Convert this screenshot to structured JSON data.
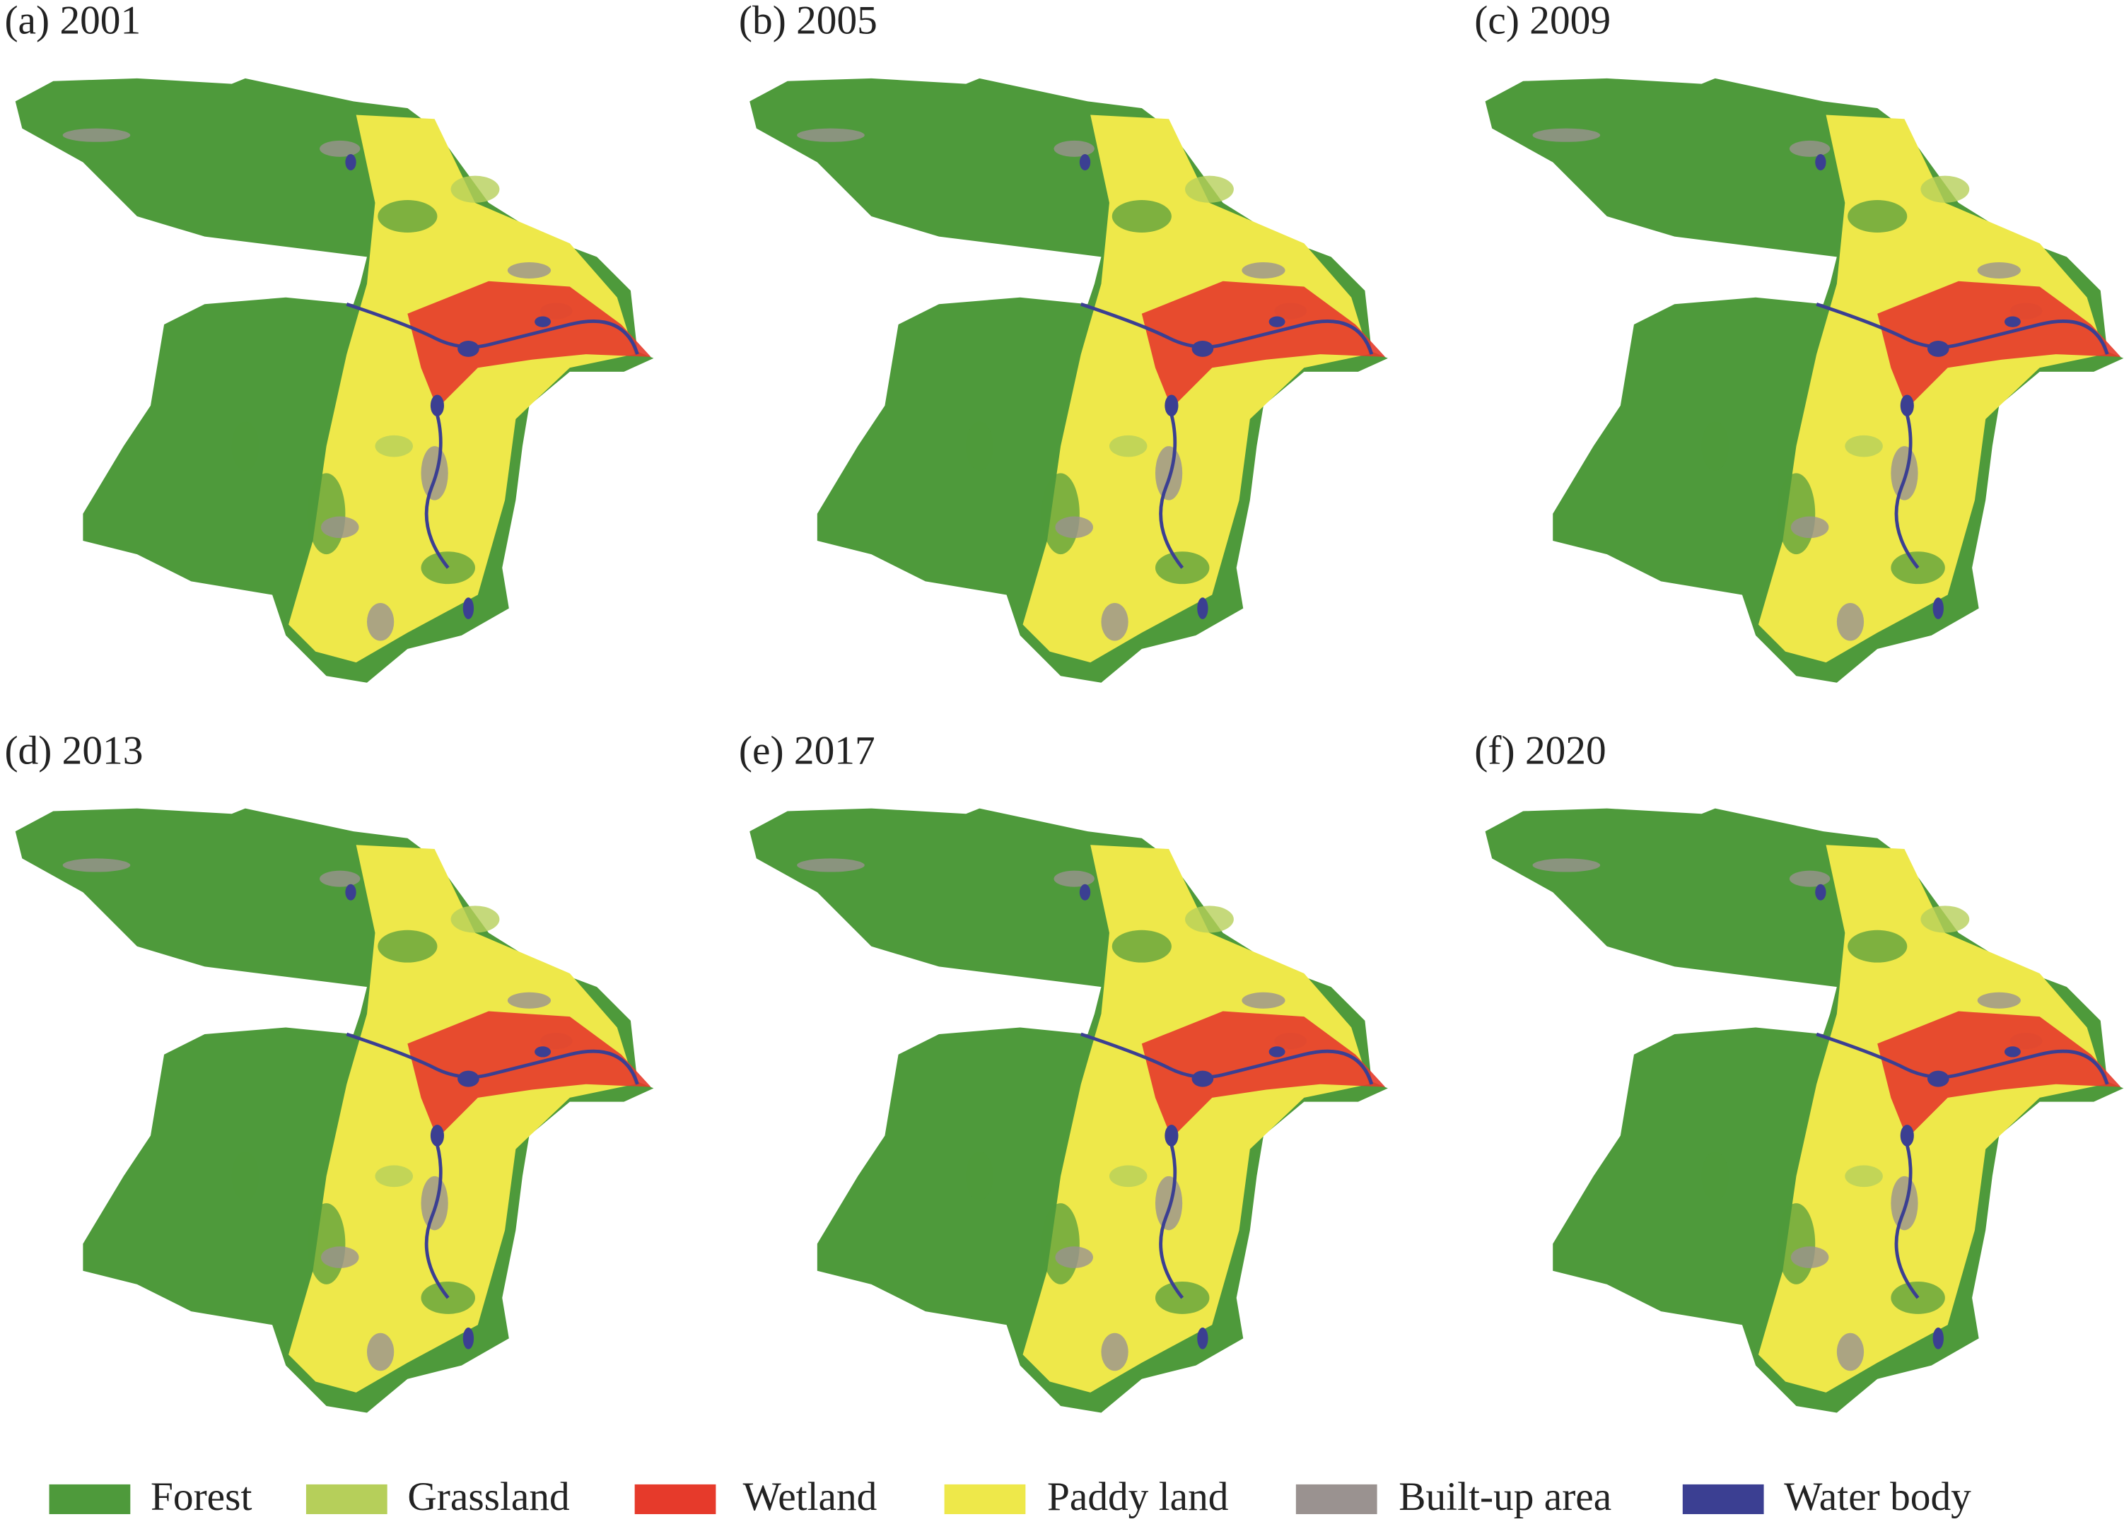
{
  "panels": [
    {
      "label": "(a) 2001"
    },
    {
      "label": "(b) 2005"
    },
    {
      "label": "(c) 2009"
    },
    {
      "label": "(d) 2013"
    },
    {
      "label": "(e) 2017"
    },
    {
      "label": "(f) 2020"
    }
  ],
  "legend": [
    {
      "label": "Forest",
      "color": "#4e9a3b"
    },
    {
      "label": "Grassland",
      "color": "#b6cf5a"
    },
    {
      "label": "Wetland",
      "color": "#e63a2b"
    },
    {
      "label": "Paddy land",
      "color": "#eee84a"
    },
    {
      "label": "Built-up area",
      "color": "#9a9290"
    },
    {
      "label": "Water body",
      "color": "#3b3f92"
    }
  ]
}
